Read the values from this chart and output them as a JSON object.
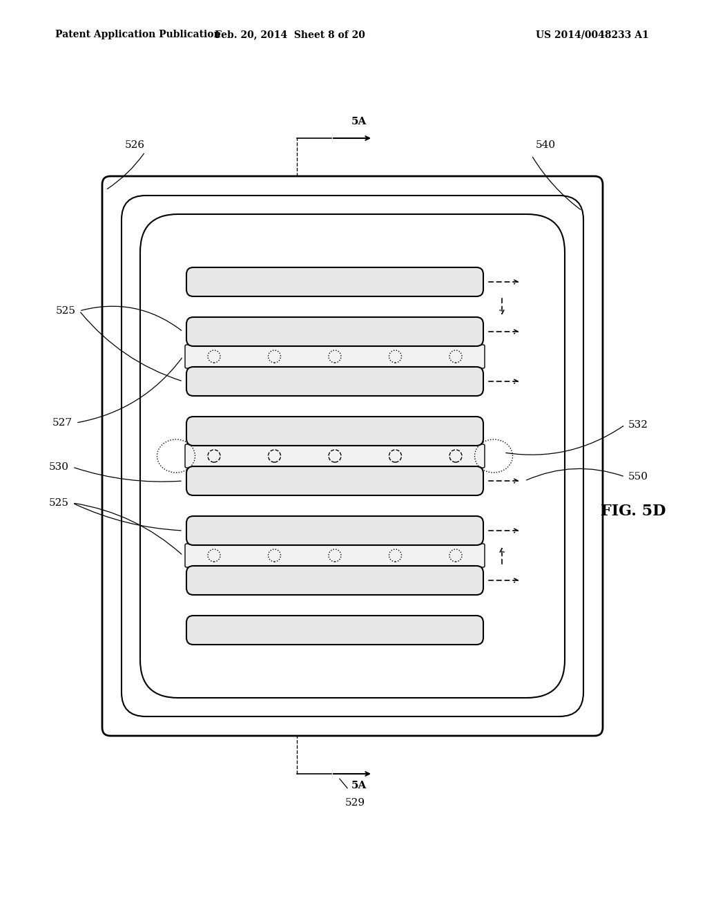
{
  "bg_color": "#ffffff",
  "line_color": "#000000",
  "header_left": "Patent Application Publication",
  "header_mid": "Feb. 20, 2014  Sheet 8 of 20",
  "header_right": "US 2014/0048233 A1",
  "fig_label": "FIG. 5D",
  "label_526": "526",
  "label_540": "540",
  "label_525a": "525",
  "label_527": "527",
  "label_530": "530",
  "label_525b": "525",
  "label_532": "532",
  "label_550": "550",
  "label_529": "529",
  "label_5A_top": "5A",
  "label_5A_bot": "5A",
  "fin_fc": "#e8e8e8",
  "dot_row_fc": "#f0f0f0"
}
